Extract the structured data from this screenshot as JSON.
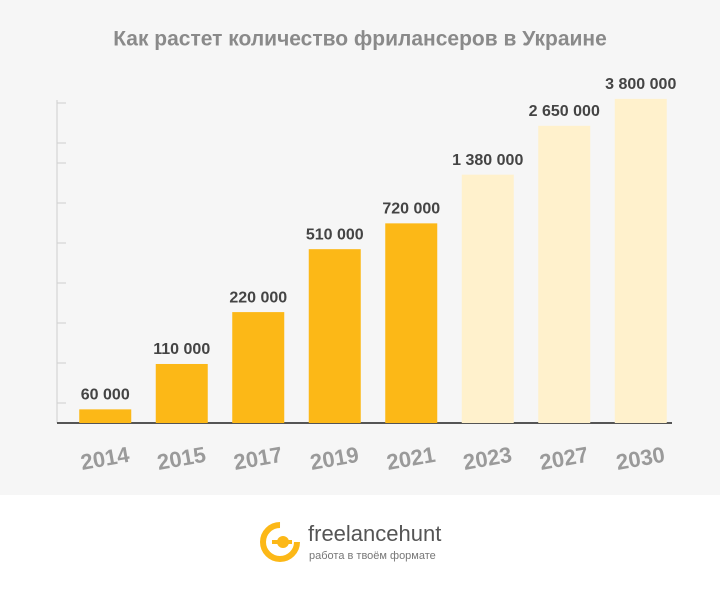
{
  "chart_data": {
    "type": "bar",
    "title": "Как растет количество фрилансеров в Украине",
    "categories": [
      "2014",
      "2015",
      "2017",
      "2019",
      "2021",
      "2023",
      "2027",
      "2030"
    ],
    "values": [
      60000,
      110000,
      220000,
      510000,
      720000,
      1380000,
      2650000,
      3800000
    ],
    "value_labels": [
      "60 000",
      "110 000",
      "220 000",
      "510 000",
      "720 000",
      "1 380 000",
      "2 650 000",
      "3 800 000"
    ],
    "colors": [
      "#fcb817",
      "#fcb817",
      "#fcb817",
      "#fcb817",
      "#fcb817",
      "#fff1cc",
      "#fff1cc",
      "#fff1cc"
    ],
    "ylim": [
      50000,
      4000000
    ],
    "log_scale": true
  },
  "footer": {
    "brand": "freelancehunt",
    "tagline": "работа в твоём формате"
  }
}
